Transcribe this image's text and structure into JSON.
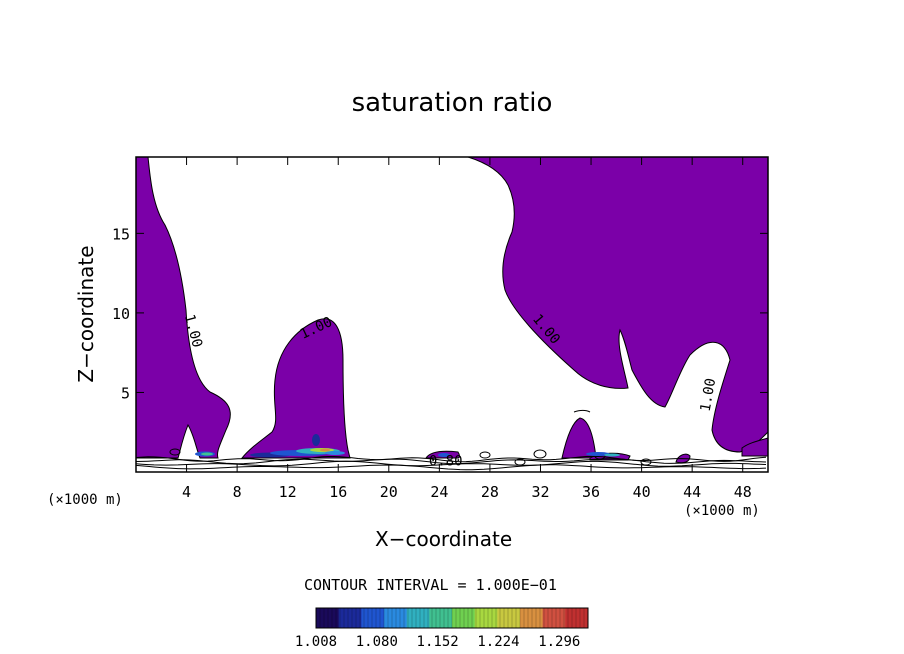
{
  "chart_data": {
    "type": "contour",
    "title": "saturation ratio",
    "xlabel": "X−coordinate",
    "ylabel": "Z−coordinate",
    "x_units_left": "(×1000 m)",
    "x_units_right": "(×1000 m)",
    "xlim": [
      0,
      50
    ],
    "ylim": [
      0,
      19.8
    ],
    "xticks": [
      4,
      8,
      12,
      16,
      20,
      24,
      28,
      32,
      36,
      40,
      44,
      48
    ],
    "xtick_labels": [
      "4",
      "8",
      "12",
      "16",
      "20",
      "24",
      "28",
      "32",
      "36",
      "40",
      "44",
      "48"
    ],
    "yticks": [
      5,
      10,
      15
    ],
    "ytick_labels": [
      "5",
      "10",
      "15"
    ],
    "contour_interval_text": "CONTOUR INTERVAL = 1.000E−01",
    "contour_labels": [
      {
        "text": "1.00",
        "x": 4.2,
        "y": 8.8,
        "angle": 75
      },
      {
        "text": "1.00",
        "x": 14.4,
        "y": 8.8,
        "angle": -25
      },
      {
        "text": "1.00",
        "x": 32.2,
        "y": 8.8,
        "angle": 50
      },
      {
        "text": "1.00",
        "x": 45.6,
        "y": 4.8,
        "angle": -80
      },
      {
        "text": "0.80",
        "x": 24.5,
        "y": 0.4,
        "angle": 0
      }
    ],
    "colorbar": {
      "min": 1.008,
      "max": 1.33,
      "tick_labels": [
        "1.008",
        "1.080",
        "1.152",
        "1.224",
        "1.296"
      ],
      "colors": [
        "#1a0a5a",
        "#1b2a9a",
        "#1f55d0",
        "#2a8ae0",
        "#30b0c0",
        "#40c090",
        "#6fd050",
        "#a8d840",
        "#c8c840",
        "#d89040",
        "#d05040",
        "#c03030"
      ]
    },
    "fill_color": "#7b00a8",
    "line_color": "#000000"
  }
}
